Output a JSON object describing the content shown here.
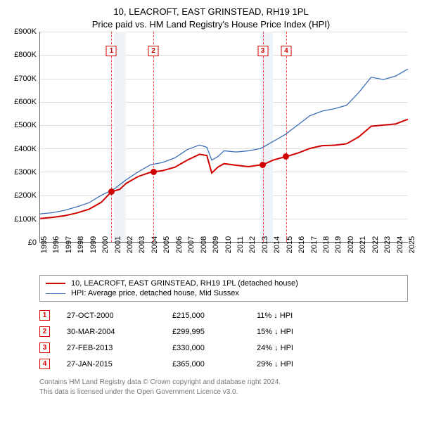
{
  "title": {
    "line1": "10, LEACROFT, EAST GRINSTEAD, RH19 1PL",
    "line2": "Price paid vs. HM Land Registry's House Price Index (HPI)",
    "fontsize": 13,
    "color": "#000000"
  },
  "chart": {
    "type": "line",
    "background_color": "#ffffff",
    "grid_color": "#dddddd",
    "axis_color": "#666666",
    "shade_color": "#eef3f8",
    "shade_bands": [
      [
        2001,
        2002
      ],
      [
        2013,
        2014
      ]
    ],
    "x": {
      "min": 1995,
      "max": 2025,
      "tick_step": 1,
      "label_fontsize": 11
    },
    "y": {
      "min": 0,
      "max": 900000,
      "tick_step": 100000,
      "tick_labels": [
        "£0",
        "£100K",
        "£200K",
        "£300K",
        "£400K",
        "£500K",
        "£600K",
        "£700K",
        "£800K",
        "£900K"
      ],
      "label_fontsize": 11
    },
    "markers": {
      "line_color": "rgba(255,0,0,0.7)",
      "badge_border": "#d00000",
      "badge_text": "#d00000",
      "items": [
        {
          "idx": "1",
          "x": 2000.82
        },
        {
          "idx": "2",
          "x": 2004.24
        },
        {
          "idx": "3",
          "x": 2013.16
        },
        {
          "idx": "4",
          "x": 2015.07
        }
      ]
    },
    "sale_points": {
      "color": "#d00000",
      "radius": 4.5,
      "items": [
        {
          "x": 2000.82,
          "y": 215000
        },
        {
          "x": 2004.24,
          "y": 299995
        },
        {
          "x": 2013.16,
          "y": 330000
        },
        {
          "x": 2015.07,
          "y": 365000
        }
      ]
    },
    "series": [
      {
        "name": "property",
        "label": "10, LEACROFT, EAST GRINSTEAD, RH19 1PL (detached house)",
        "color": "#d00000",
        "width": 2,
        "points": [
          [
            1995,
            100000
          ],
          [
            1996,
            105000
          ],
          [
            1997,
            112000
          ],
          [
            1998,
            124000
          ],
          [
            1999,
            140000
          ],
          [
            2000,
            170000
          ],
          [
            2000.82,
            215000
          ],
          [
            2001.5,
            225000
          ],
          [
            2002,
            250000
          ],
          [
            2003,
            280000
          ],
          [
            2004,
            298000
          ],
          [
            2004.24,
            299995
          ],
          [
            2005,
            305000
          ],
          [
            2006,
            320000
          ],
          [
            2007,
            350000
          ],
          [
            2008,
            375000
          ],
          [
            2008.6,
            370000
          ],
          [
            2009,
            295000
          ],
          [
            2009.5,
            320000
          ],
          [
            2010,
            335000
          ],
          [
            2011,
            328000
          ],
          [
            2012,
            322000
          ],
          [
            2013,
            330000
          ],
          [
            2013.16,
            330000
          ],
          [
            2014,
            350000
          ],
          [
            2015,
            365000
          ],
          [
            2015.07,
            365000
          ],
          [
            2016,
            380000
          ],
          [
            2017,
            400000
          ],
          [
            2018,
            412000
          ],
          [
            2019,
            414000
          ],
          [
            2020,
            420000
          ],
          [
            2021,
            450000
          ],
          [
            2022,
            495000
          ],
          [
            2023,
            500000
          ],
          [
            2024,
            505000
          ],
          [
            2025,
            525000
          ]
        ]
      },
      {
        "name": "hpi",
        "label": "HPI: Average price, detached house, Mid Sussex",
        "color": "#3b6fb6",
        "width": 1.3,
        "points": [
          [
            1995,
            120000
          ],
          [
            1996,
            125000
          ],
          [
            1997,
            135000
          ],
          [
            1998,
            150000
          ],
          [
            1999,
            168000
          ],
          [
            2000,
            200000
          ],
          [
            2001,
            225000
          ],
          [
            2002,
            265000
          ],
          [
            2003,
            300000
          ],
          [
            2004,
            330000
          ],
          [
            2005,
            340000
          ],
          [
            2006,
            360000
          ],
          [
            2007,
            395000
          ],
          [
            2008,
            415000
          ],
          [
            2008.6,
            405000
          ],
          [
            2009,
            350000
          ],
          [
            2009.5,
            365000
          ],
          [
            2010,
            390000
          ],
          [
            2011,
            385000
          ],
          [
            2012,
            390000
          ],
          [
            2013,
            400000
          ],
          [
            2014,
            430000
          ],
          [
            2015,
            460000
          ],
          [
            2016,
            500000
          ],
          [
            2017,
            540000
          ],
          [
            2018,
            560000
          ],
          [
            2019,
            570000
          ],
          [
            2020,
            585000
          ],
          [
            2021,
            640000
          ],
          [
            2022,
            705000
          ],
          [
            2023,
            695000
          ],
          [
            2024,
            710000
          ],
          [
            2025,
            740000
          ]
        ]
      }
    ]
  },
  "legend": {
    "border_color": "#999999",
    "fontsize": 11
  },
  "sales_table": {
    "fontsize": 11,
    "arrow": "↓",
    "suffix": "HPI",
    "rows": [
      {
        "idx": "1",
        "date": "27-OCT-2000",
        "price": "£215,000",
        "delta": "11%"
      },
      {
        "idx": "2",
        "date": "30-MAR-2004",
        "price": "£299,995",
        "delta": "15%"
      },
      {
        "idx": "3",
        "date": "27-FEB-2013",
        "price": "£330,000",
        "delta": "24%"
      },
      {
        "idx": "4",
        "date": "27-JAN-2015",
        "price": "£365,000",
        "delta": "29%"
      }
    ]
  },
  "footer": {
    "line1": "Contains HM Land Registry data © Crown copyright and database right 2024.",
    "line2": "This data is licensed under the Open Government Licence v3.0.",
    "color": "#777777",
    "fontsize": 10
  }
}
